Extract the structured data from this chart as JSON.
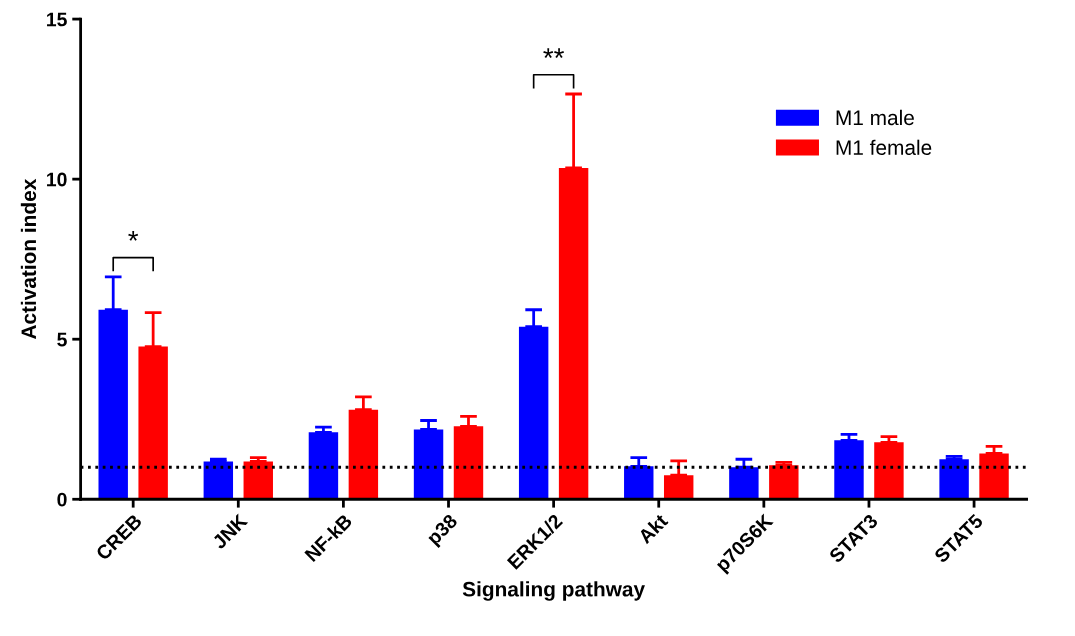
{
  "chart_data": {
    "type": "bar",
    "xlabel": "Signaling pathway",
    "ylabel": "Activation index",
    "categories": [
      "CREB",
      "JNK",
      "NF-kB",
      "p38",
      "ERK1/2",
      "Akt",
      "p70S6K",
      "STAT3",
      "STAT5"
    ],
    "series": [
      {
        "name": "M1 male",
        "color": "#0000ff",
        "values": [
          5.92,
          1.18,
          2.09,
          2.18,
          5.39,
          1.03,
          1.0,
          1.84,
          1.25
        ],
        "errors": [
          [
            5.92,
            6.95
          ],
          [
            1.18,
            1.25
          ],
          [
            2.09,
            2.25
          ],
          [
            2.18,
            2.46
          ],
          [
            5.39,
            5.92
          ],
          [
            1.03,
            1.3
          ],
          [
            1.0,
            1.25
          ],
          [
            1.84,
            2.03
          ],
          [
            1.25,
            1.34
          ]
        ]
      },
      {
        "name": "M1 female",
        "color": "#ff0000",
        "values": [
          4.77,
          1.18,
          2.8,
          2.28,
          10.35,
          0.75,
          1.06,
          1.78,
          1.43
        ],
        "errors": [
          [
            4.77,
            5.83
          ],
          [
            1.18,
            1.3
          ],
          [
            2.8,
            3.2
          ],
          [
            2.28,
            2.59
          ],
          [
            10.35,
            12.66
          ],
          [
            0.75,
            1.2
          ],
          [
            1.06,
            1.15
          ],
          [
            1.78,
            1.96
          ],
          [
            1.43,
            1.65
          ]
        ]
      }
    ],
    "ylim": [
      0,
      15
    ],
    "yticks": [
      0,
      5,
      10,
      15
    ],
    "ref_lines": [
      {
        "axis": "y",
        "value": 1,
        "line_style": "dotted",
        "color": "#000000"
      }
    ],
    "annotations": [
      "*",
      "**"
    ],
    "legend": "top right",
    "grid": false
  }
}
